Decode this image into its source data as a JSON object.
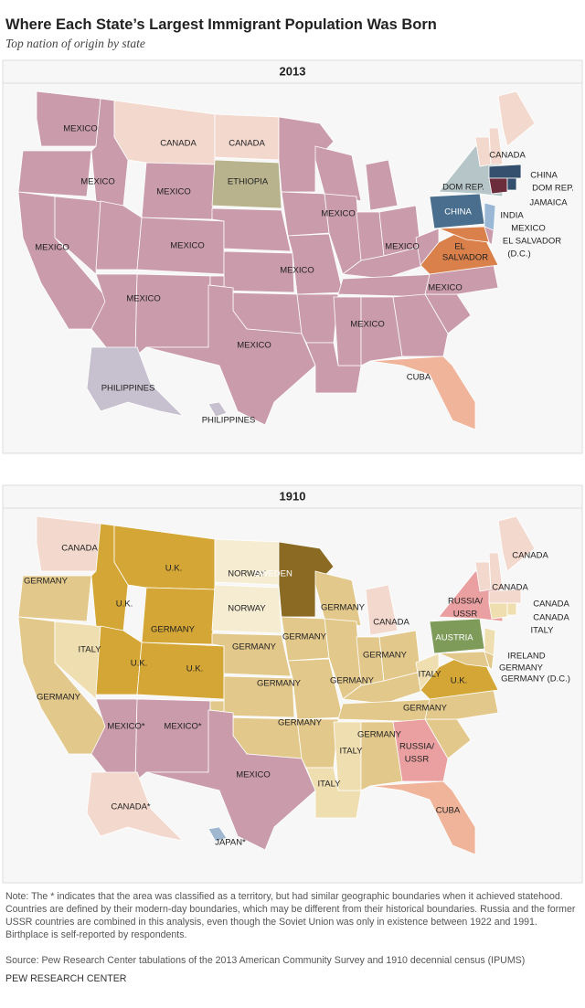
{
  "header": {
    "title": "Where Each State’s Largest Immigrant Population Was Born",
    "subtitle": "Top nation of origin by state"
  },
  "maps": [
    {
      "year": "2013",
      "labels": [
        "MEXICO",
        "CANADA",
        "CANADA",
        "CANADA",
        "MEXICO",
        "MEXICO",
        "ETHIOPIA",
        "CHINA",
        "DOM REP.",
        "DOM REP.",
        "JAMAICA",
        "CHINA",
        "INDIA",
        "MEXICO",
        "MEXICO",
        "MEXICO",
        "MEXICO",
        "MEXICO",
        "EL SALVADOR",
        "(D.C.)",
        "EL",
        "SALVADOR",
        "MEXICO",
        "MEXICO",
        "MEXICO",
        "MEXICO",
        "MEXICO",
        "CUBA",
        "PHILIPPINES",
        "PHILIPPINES"
      ]
    },
    {
      "year": "1910",
      "labels": [
        "CANADA",
        "U.K.",
        "NORWAY",
        "SWEDEN",
        "CANADA",
        "CANADA",
        "RUSSIA/",
        "USSR",
        "CANADA",
        "CANADA",
        "GERMANY",
        "U.K.",
        "NORWAY",
        "GERMANY",
        "CANADA",
        "GERMANY",
        "ITALY",
        "AUSTRIA",
        "ITALY",
        "GERMANY",
        "GERMANY",
        "GERMANY",
        "U.K.",
        "U.K.",
        "IRELAND",
        "GERMANY",
        "GERMANY (D.C.)",
        "GERMANY",
        "GERMANY",
        "ITALY",
        "U.K.",
        "GERMANY",
        "GERMANY",
        "GERMANY",
        "GERMANY",
        "ITALY",
        "RUSSIA/",
        "USSR",
        "MEXICO*",
        "MEXICO*",
        "MEXICO",
        "ITALY",
        "CUBA",
        "CANADA*",
        "JAPAN*"
      ]
    }
  ],
  "note": "Note: The * indicates that the area was classified as a territory, but had similar geographic boundaries when it achieved statehood. Countries are defined by their modern-day boundaries, which may be different from their historical boundaries. Russia and the former USSR countries are combined in this analysis, even though the Soviet Union was only in existence between 1922 and 1991. Birthplace is self-reported by respondents.",
  "source": "Source: Pew Research Center tabulations of the 2013 American Community Survey and 1910 decennial census (IPUMS)",
  "credit": "PEW RESEARCH CENTER"
}
